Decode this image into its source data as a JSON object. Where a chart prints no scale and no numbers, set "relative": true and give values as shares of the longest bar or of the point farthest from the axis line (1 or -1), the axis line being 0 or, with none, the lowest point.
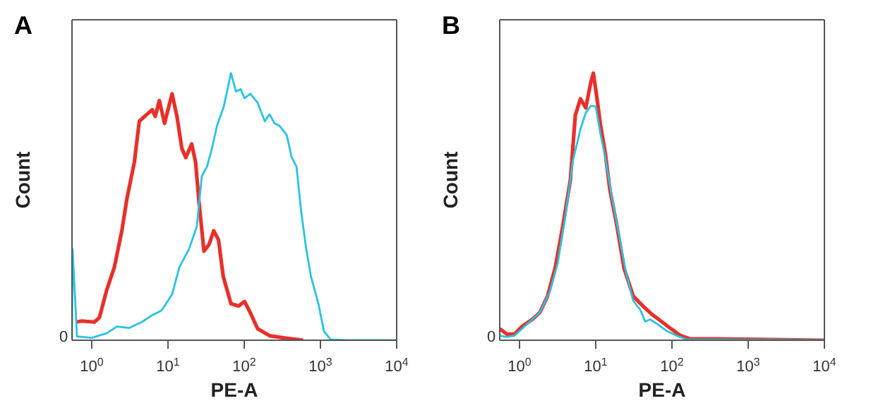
{
  "chart_data": [
    {
      "type": "line",
      "title": "A",
      "xlabel": "PE-A",
      "ylabel": "Count",
      "relative": true,
      "log": "x",
      "annotations": [
        "0"
      ],
      "marker": "none",
      "line_style": "solid",
      "xlim": [
        0.55,
        10000
      ],
      "xticks": [
        {
          "value": 1,
          "label": "10$^{0}$"
        },
        {
          "value": 10,
          "label": "10$^{1}$"
        },
        {
          "value": 100,
          "label": "10$^{2}$"
        },
        {
          "value": 1000,
          "label": "10$^{3}$"
        },
        {
          "value": 10000,
          "label": "10$^{4}$"
        }
      ],
      "series": [
        {
          "color": "#e8302a",
          "x": [
            0.62,
            0.74,
            1.08,
            1.26,
            1.57,
            1.98,
            2.48,
            2.89,
            3.62,
            4.2,
            5.3,
            6.2,
            6.8,
            7.7,
            9.0,
            11.3,
            13.1,
            15.2,
            17.1,
            20.4,
            23,
            25.6,
            29.6,
            34.6,
            39.8,
            46,
            53,
            67,
            84,
            101,
            120,
            150,
            215,
            330,
            590
          ],
          "values": [
            0.068,
            0.072,
            0.068,
            0.085,
            0.188,
            0.274,
            0.41,
            0.53,
            0.667,
            0.82,
            0.846,
            0.863,
            0.838,
            0.897,
            0.812,
            0.923,
            0.838,
            0.718,
            0.684,
            0.735,
            0.667,
            0.513,
            0.333,
            0.359,
            0.41,
            0.376,
            0.239,
            0.137,
            0.128,
            0.145,
            0.103,
            0.043,
            0.017,
            0.009,
            0
          ]
        },
        {
          "color": "#29c3e0",
          "x": [
            0.55,
            0.56,
            0.64,
            1.0,
            1.57,
            2.13,
            3.11,
            4.54,
            6.2,
            8.2,
            11.3,
            14.1,
            18.9,
            23.9,
            27.8,
            32.4,
            37.7,
            43.9,
            53.6,
            67,
            77.6,
            90,
            101,
            120,
            150,
            186,
            215,
            250,
            290,
            360,
            420,
            485,
            560,
            650,
            750,
            940,
            1110,
            1350,
            2260,
            10000
          ],
          "values": [
            0,
            0.342,
            0.014,
            0.009,
            0.026,
            0.051,
            0.046,
            0.068,
            0.094,
            0.111,
            0.171,
            0.274,
            0.342,
            0.427,
            0.615,
            0.65,
            0.718,
            0.803,
            0.872,
            1,
            0.932,
            0.94,
            0.906,
            0.923,
            0.889,
            0.82,
            0.846,
            0.812,
            0.803,
            0.769,
            0.684,
            0.65,
            0.479,
            0.342,
            0.239,
            0.137,
            0.034,
            0.003,
            0,
            0
          ]
        }
      ]
    },
    {
      "type": "line",
      "title": "B",
      "xlabel": "PE-A",
      "ylabel": "Count",
      "relative": true,
      "log": "x",
      "annotations": [
        "0"
      ],
      "marker": "none",
      "line_style": "solid",
      "xlim": [
        0.55,
        10000
      ],
      "xticks": [
        {
          "value": 1,
          "label": "10$^{0}$"
        },
        {
          "value": 10,
          "label": "10$^{1}$"
        },
        {
          "value": 100,
          "label": "10$^{2}$"
        },
        {
          "value": 1000,
          "label": "10$^{3}$"
        },
        {
          "value": 10000,
          "label": "10$^{4}$"
        }
      ],
      "series": [
        {
          "color": "#e8302a",
          "x": [
            0.55,
            0.68,
            0.86,
            1.08,
            1.47,
            1.85,
            2.33,
            2.93,
            3.69,
            4.64,
            5.4,
            6.3,
            7.4,
            8.6,
            9.3,
            10.3,
            11.5,
            13.3,
            15.3,
            19,
            23.5,
            31,
            41,
            55,
            73,
            97,
            130,
            175,
            360,
            10000
          ],
          "values": [
            0.043,
            0.023,
            0.023,
            0.052,
            0.078,
            0.104,
            0.165,
            0.27,
            0.426,
            0.6,
            0.843,
            0.904,
            0.87,
            0.965,
            1,
            0.913,
            0.809,
            0.704,
            0.565,
            0.426,
            0.27,
            0.165,
            0.13,
            0.096,
            0.07,
            0.043,
            0.017,
            0.005,
            0.005,
            0
          ]
        },
        {
          "color": "#29c3e0",
          "x": [
            0.55,
            0.68,
            0.86,
            1.17,
            1.85,
            2.51,
            3.16,
            3.98,
            5.0,
            6.3,
            7.4,
            8.6,
            10,
            11.5,
            13.3,
            16.4,
            20.3,
            25,
            31,
            38.5,
            44.6,
            51.6,
            64,
            85,
            115,
            154,
            10000
          ],
          "values": [
            0.017,
            0.012,
            0.017,
            0.052,
            0.104,
            0.183,
            0.287,
            0.461,
            0.67,
            0.791,
            0.852,
            0.878,
            0.875,
            0.774,
            0.687,
            0.53,
            0.391,
            0.252,
            0.148,
            0.113,
            0.07,
            0.078,
            0.061,
            0.035,
            0.017,
            0.003,
            0
          ]
        }
      ]
    }
  ]
}
